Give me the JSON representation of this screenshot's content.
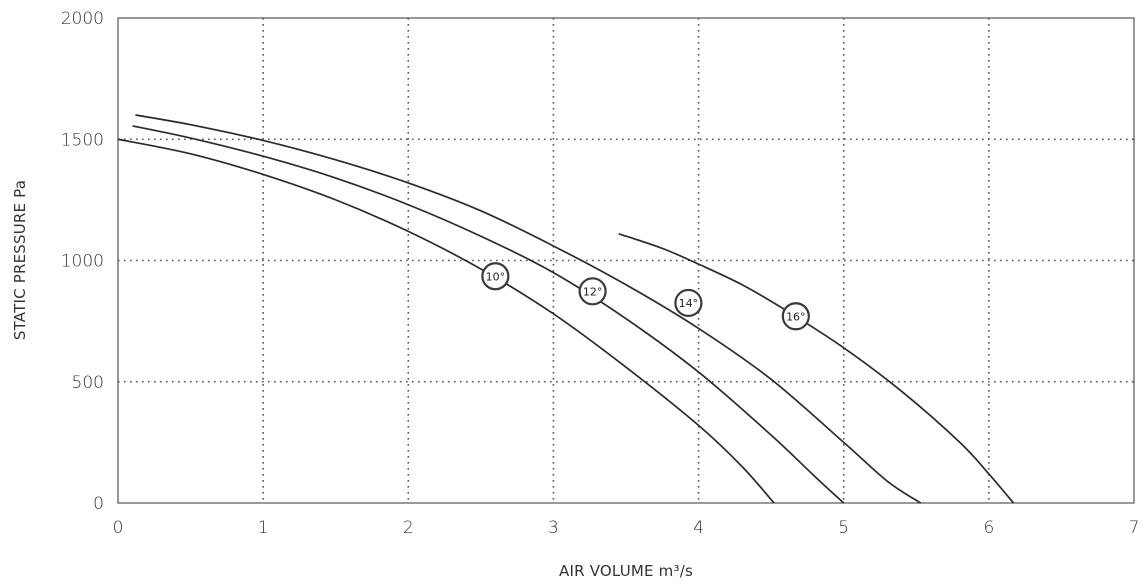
{
  "chart_data": {
    "type": "line",
    "title": "",
    "xlabel": "AIR VOLUME m³/s",
    "ylabel": "STATIC PRESSURE Pa",
    "xlim": [
      0,
      7
    ],
    "ylim": [
      0,
      2000
    ],
    "x_ticks": [
      "0",
      "1",
      "2",
      "3",
      "4",
      "5",
      "6",
      "7"
    ],
    "y_ticks": [
      "0",
      "500",
      "1000",
      "1500",
      "2000"
    ],
    "grid": true,
    "grid_style": "dotted",
    "legend": "none",
    "line_color": "#2b2b2b",
    "series": [
      {
        "name": "10°",
        "label_at": [
          2.6,
          935
        ],
        "points": [
          [
            0,
            1500
          ],
          [
            0.5,
            1440
          ],
          [
            1,
            1355
          ],
          [
            1.5,
            1250
          ],
          [
            2,
            1120
          ],
          [
            2.5,
            965
          ],
          [
            3,
            780
          ],
          [
            3.5,
            560
          ],
          [
            4,
            320
          ],
          [
            4.3,
            150
          ],
          [
            4.52,
            0
          ]
        ]
      },
      {
        "name": "12°",
        "label_at": [
          3.27,
          873
        ],
        "points": [
          [
            0.1,
            1555
          ],
          [
            0.5,
            1505
          ],
          [
            1,
            1430
          ],
          [
            1.5,
            1340
          ],
          [
            2,
            1230
          ],
          [
            2.5,
            1100
          ],
          [
            3,
            950
          ],
          [
            3.5,
            760
          ],
          [
            4,
            540
          ],
          [
            4.5,
            280
          ],
          [
            4.8,
            110
          ],
          [
            5.0,
            0
          ]
        ]
      },
      {
        "name": "14°",
        "label_at": [
          3.93,
          825
        ],
        "points": [
          [
            0.12,
            1600
          ],
          [
            0.5,
            1560
          ],
          [
            1,
            1495
          ],
          [
            1.5,
            1415
          ],
          [
            2,
            1320
          ],
          [
            2.5,
            1205
          ],
          [
            3,
            1060
          ],
          [
            3.5,
            900
          ],
          [
            4,
            720
          ],
          [
            4.5,
            510
          ],
          [
            5,
            250
          ],
          [
            5.3,
            90
          ],
          [
            5.53,
            0
          ]
        ]
      },
      {
        "name": "16°",
        "label_at": [
          4.67,
          770
        ],
        "points": [
          [
            3.45,
            1110
          ],
          [
            3.75,
            1050
          ],
          [
            4,
            985
          ],
          [
            4.3,
            900
          ],
          [
            4.6,
            795
          ],
          [
            5,
            640
          ],
          [
            5.4,
            460
          ],
          [
            5.8,
            250
          ],
          [
            6.0,
            120
          ],
          [
            6.17,
            0
          ]
        ]
      }
    ]
  }
}
